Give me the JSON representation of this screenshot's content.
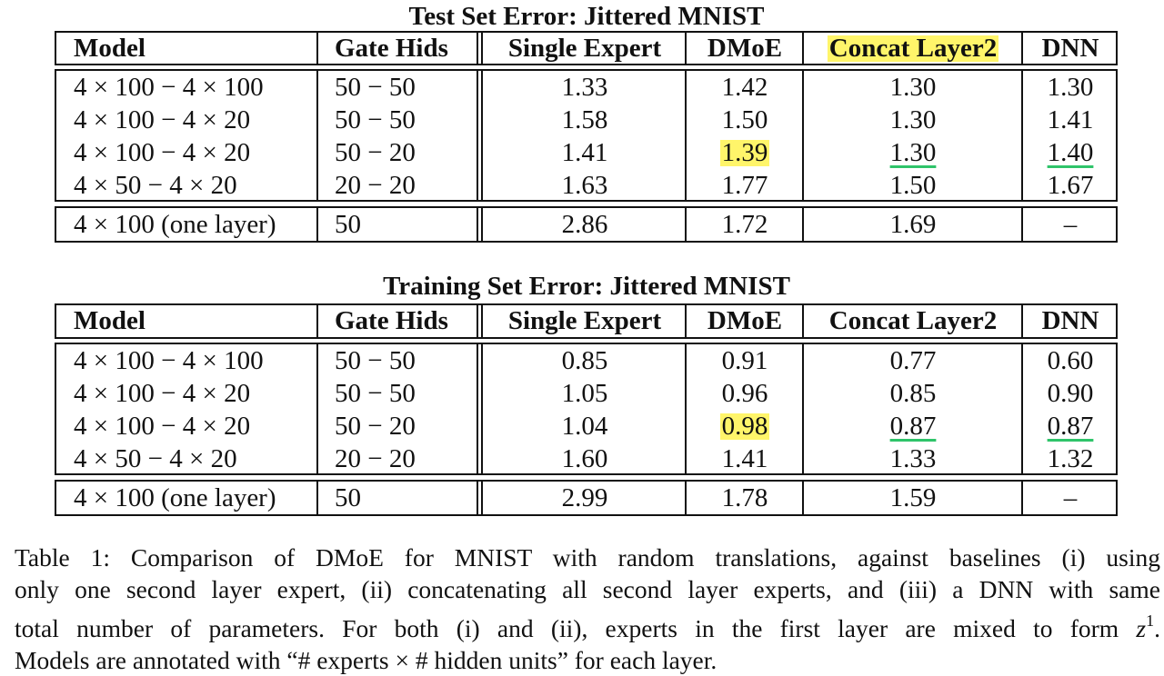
{
  "tables": [
    {
      "title": "Test Set Error: Jittered MNIST",
      "headers": [
        "Model",
        "Gate Hids",
        "Single Expert",
        "DMoE",
        "Concat Layer2",
        "DNN"
      ],
      "rows": [
        [
          "4 × 100 − 4 × 100",
          "50 − 50",
          "1.33",
          "1.42",
          "1.30",
          "1.30"
        ],
        [
          "4 × 100 − 4 × 20",
          "50 − 50",
          "1.58",
          "1.50",
          "1.30",
          "1.41"
        ],
        [
          "4 × 100 − 4 × 20",
          "50 − 20",
          "1.41",
          "1.39",
          "1.30",
          "1.40"
        ],
        [
          "4 × 50 − 4 × 20",
          "20 − 20",
          "1.63",
          "1.77",
          "1.50",
          "1.67"
        ]
      ],
      "extra_row": [
        "4 × 100 (one layer)",
        "50",
        "2.86",
        "1.72",
        "1.69",
        "–"
      ]
    },
    {
      "title": "Training Set Error: Jittered MNIST",
      "headers": [
        "Model",
        "Gate Hids",
        "Single Expert",
        "DMoE",
        "Concat Layer2",
        "DNN"
      ],
      "rows": [
        [
          "4 × 100 − 4 × 100",
          "50 − 50",
          "0.85",
          "0.91",
          "0.77",
          "0.60"
        ],
        [
          "4 × 100 − 4 × 20",
          "50 − 50",
          "1.05",
          "0.96",
          "0.85",
          "0.90"
        ],
        [
          "4 × 100 − 4 × 20",
          "50 − 20",
          "1.04",
          "0.98",
          "0.87",
          "0.87"
        ],
        [
          "4 × 50 − 4 × 20",
          "20 − 20",
          "1.60",
          "1.41",
          "1.33",
          "1.32"
        ]
      ],
      "extra_row": [
        "4 × 100 (one layer)",
        "50",
        "2.99",
        "1.78",
        "1.59",
        "–"
      ]
    }
  ],
  "caption": {
    "line1": "Table 1:   Comparison of DMoE for MNIST with random translations, against baselines (i) using",
    "line2": "only one second layer expert, (ii) concatenating all second layer experts, and (iii) a DNN with same",
    "line3_pre": "total number of parameters.  For both (i) and (ii), experts in the first layer are mixed to form ",
    "line3_var": "z",
    "line3_sup": "1",
    "line3_post": ".",
    "line4": "Models are annotated with “# experts × # hidden units” for each layer."
  },
  "highlight_colors": {
    "yellow": "#fff56a",
    "green_underline": "#2fc46a"
  }
}
